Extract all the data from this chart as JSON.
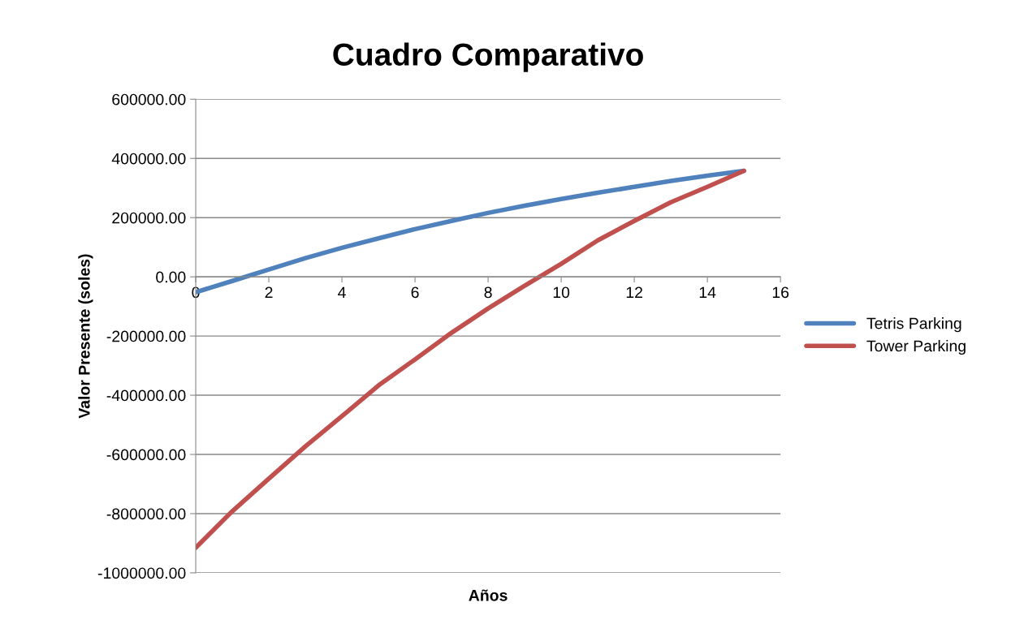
{
  "chart_data": {
    "type": "line",
    "title": "Cuadro Comparativo",
    "xlabel": "Años",
    "ylabel": "Valor Presente (soles)",
    "x": [
      0,
      1,
      2,
      3,
      4,
      5,
      6,
      7,
      8,
      9,
      10,
      11,
      12,
      13,
      14,
      15
    ],
    "series": [
      {
        "name": "Tetris Parking",
        "color": "#4f81bd",
        "values": [
          -52000,
          -14000,
          25000,
          63000,
          98000,
          130000,
          161000,
          189000,
          216000,
          240000,
          263000,
          284000,
          304000,
          324000,
          342000,
          358000
        ]
      },
      {
        "name": "Tower Parking",
        "color": "#c0504d",
        "values": [
          -915000,
          -792000,
          -682000,
          -573000,
          -471000,
          -367000,
          -279000,
          -189000,
          -107000,
          -30000,
          44000,
          123000,
          189000,
          252000,
          304000,
          358000
        ]
      }
    ],
    "xlim": [
      0,
      16
    ],
    "xticks": [
      0,
      2,
      4,
      6,
      8,
      10,
      12,
      14,
      16
    ],
    "ylim": [
      -1000000,
      600000
    ],
    "yticks": [
      {
        "value": -1000000,
        "label": "-1000000.00"
      },
      {
        "value": -800000,
        "label": "-800000.00"
      },
      {
        "value": -600000,
        "label": "-600000.00"
      },
      {
        "value": -400000,
        "label": "-400000.00"
      },
      {
        "value": -200000,
        "label": "-200000.00"
      },
      {
        "value": 0,
        "label": "0.00"
      },
      {
        "value": 200000,
        "label": "200000.00"
      },
      {
        "value": 400000,
        "label": "400000.00"
      },
      {
        "value": 600000,
        "label": "600000.00"
      }
    ],
    "grid": "y",
    "legend": "right",
    "marker": "none",
    "line_style": "solid"
  }
}
